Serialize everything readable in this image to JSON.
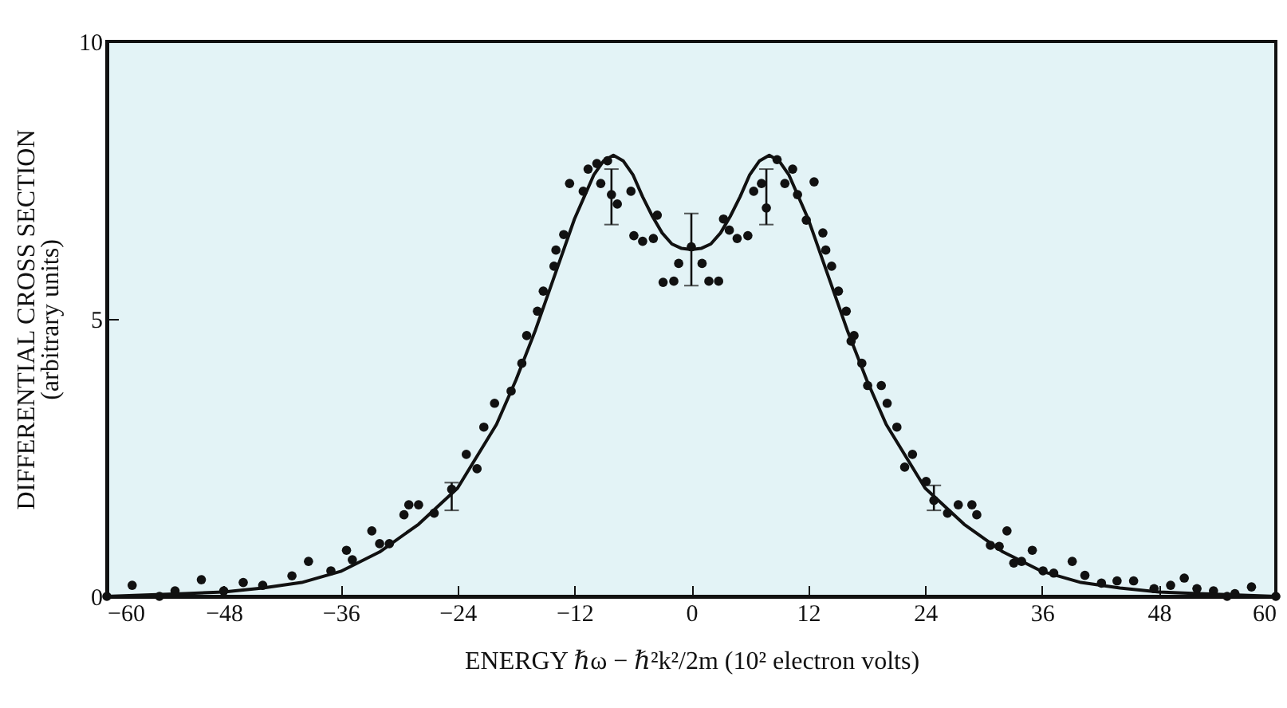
{
  "chart_data": {
    "type": "scatter",
    "xlabel": "ENERGY ℏω − ℏ²k²/2m  (10² electron volts)",
    "ylabel": "DIFFERENTIAL CROSS SECTION\n(arbitrary units)",
    "xlim": [
      -60,
      60
    ],
    "xticks": [
      -60,
      -48,
      -36,
      -24,
      -12,
      0,
      12,
      24,
      36,
      48,
      60
    ],
    "ylim": [
      0,
      10
    ],
    "yticks": [
      0,
      5,
      10
    ],
    "line_style": "solid",
    "series": [
      {
        "marker": "circle",
        "color": "#111111",
        "x": [
          -60,
          -57.4,
          -54.6,
          -53,
          -50.3,
          -48,
          -46,
          -44,
          -41,
          -39.3,
          -37,
          -35.4,
          -34.8,
          -32.8,
          -32,
          -31,
          -29.5,
          -29,
          -28,
          -26.4,
          -24.6,
          -23.1,
          -22,
          -21.3,
          -20.2,
          -18.5,
          -17.4,
          -16.9,
          -15.8,
          -15.2,
          -14.1,
          -13.9,
          -13.1,
          -12.5,
          -11.1,
          -10.6,
          -9.7,
          -9.3,
          -8.6,
          -8.2,
          -7.6,
          -6.2,
          -5.9,
          -5,
          -3.9,
          -3.5,
          -2.9,
          -1.8,
          -1.3,
          0,
          1.1,
          1.8,
          2.8,
          3.3,
          3.9,
          4.7,
          5.8,
          6.4,
          7.2,
          7.7,
          8.8,
          9.6,
          10.4,
          10.9,
          11.8,
          12.6,
          13.5,
          13.8,
          14.4,
          15.1,
          15.9,
          16.4,
          16.7,
          17.5,
          18.1,
          19.5,
          20.1,
          21.1,
          21.9,
          22.7,
          24.1,
          24.9,
          26.3,
          27.4,
          28.8,
          29.3,
          30.7,
          31.6,
          32.4,
          33.1,
          33.9,
          35,
          36.1,
          37.2,
          39.1,
          40.4,
          42.1,
          43.7,
          45.4,
          47.5,
          49.2,
          50.6,
          51.9,
          53.6,
          55,
          55.8,
          57.5,
          60
        ],
        "values": [
          0,
          0.2,
          0,
          0.1,
          0.3,
          0.1,
          0.25,
          0.2,
          0.37,
          0.63,
          0.46,
          0.83,
          0.66,
          1.18,
          0.95,
          0.95,
          1.47,
          1.65,
          1.65,
          1.5,
          1.93,
          2.56,
          2.3,
          3.05,
          3.48,
          3.7,
          4.2,
          4.7,
          5.14,
          5.5,
          5.95,
          6.24,
          6.52,
          7.44,
          7.3,
          7.7,
          7.8,
          7.44,
          7.85,
          7.24,
          7.07,
          7.3,
          6.5,
          6.4,
          6.45,
          6.87,
          5.66,
          5.68,
          6,
          6.3,
          6,
          5.68,
          5.68,
          6.8,
          6.6,
          6.45,
          6.5,
          7.3,
          7.44,
          7,
          7.87,
          7.44,
          7.7,
          7.24,
          6.78,
          7.47,
          6.55,
          6.24,
          5.95,
          5.5,
          5.14,
          4.6,
          4.7,
          4.2,
          3.8,
          3.8,
          3.48,
          3.05,
          2.33,
          2.56,
          2.07,
          1.73,
          1.5,
          1.65,
          1.65,
          1.47,
          0.92,
          0.9,
          1.18,
          0.6,
          0.63,
          0.83,
          0.46,
          0.42,
          0.63,
          0.38,
          0.24,
          0.28,
          0.28,
          0.14,
          0.2,
          0.33,
          0.14,
          0.1,
          0,
          0.05,
          0.17,
          0
        ],
        "errors": [
          null,
          null,
          null,
          null,
          null,
          null,
          null,
          null,
          null,
          null,
          null,
          null,
          null,
          null,
          null,
          null,
          null,
          null,
          null,
          null,
          [
            1.55,
            2.05
          ],
          null,
          null,
          null,
          null,
          null,
          null,
          null,
          null,
          null,
          null,
          null,
          null,
          null,
          null,
          null,
          null,
          null,
          null,
          [
            6.7,
            7.7
          ],
          null,
          null,
          null,
          null,
          null,
          null,
          null,
          null,
          null,
          [
            5.6,
            6.9
          ],
          null,
          null,
          null,
          null,
          null,
          null,
          null,
          null,
          null,
          [
            6.7,
            7.7
          ],
          null,
          null,
          null,
          null,
          null,
          null,
          null,
          null,
          null,
          null,
          null,
          null,
          null,
          null,
          null,
          null,
          null,
          null,
          null,
          null,
          null,
          [
            1.55,
            2
          ],
          null,
          null,
          null,
          null,
          null,
          null,
          null,
          null,
          null,
          null,
          null,
          null,
          null,
          null,
          null,
          null,
          null,
          null,
          null,
          null,
          null,
          null,
          null,
          null,
          null,
          null
        ]
      },
      {
        "type": "line",
        "marker": "none",
        "color": "#111111",
        "x": [
          -60,
          -52,
          -48,
          -44,
          -40,
          -36,
          -32,
          -28,
          -24,
          -20,
          -18,
          -16,
          -14,
          -12,
          -10,
          -9,
          -8,
          -7,
          -6,
          -5,
          -4,
          -3,
          -2,
          -1,
          0,
          1,
          2,
          3,
          4,
          5,
          6,
          7,
          8,
          9,
          10,
          12,
          14,
          16,
          18,
          20,
          24,
          28,
          32,
          36,
          40,
          44,
          48,
          52,
          60
        ],
        "values": [
          0,
          0.05,
          0.08,
          0.15,
          0.25,
          0.45,
          0.8,
          1.3,
          1.95,
          3.1,
          3.9,
          4.8,
          5.8,
          6.8,
          7.6,
          7.85,
          7.95,
          7.85,
          7.6,
          7.2,
          6.85,
          6.55,
          6.35,
          6.27,
          6.25,
          6.27,
          6.35,
          6.55,
          6.85,
          7.2,
          7.6,
          7.85,
          7.95,
          7.85,
          7.6,
          6.8,
          5.8,
          4.8,
          3.9,
          3.1,
          1.95,
          1.3,
          0.8,
          0.45,
          0.25,
          0.15,
          0.08,
          0.05,
          0
        ]
      }
    ]
  }
}
